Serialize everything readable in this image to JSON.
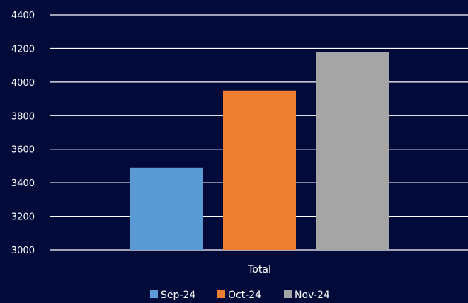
{
  "colors": {
    "background": "#020a3a",
    "grid": "#ffffff",
    "text": "#ffffff"
  },
  "chart_data": {
    "type": "bar",
    "categories": [
      "Total"
    ],
    "series": [
      {
        "name": "Sep-24",
        "values": [
          3490
        ],
        "color": "#5b9bd5"
      },
      {
        "name": "Oct-24",
        "values": [
          3950
        ],
        "color": "#ed7d31"
      },
      {
        "name": "Nov-24",
        "values": [
          4180
        ],
        "color": "#a5a5a5"
      }
    ],
    "ylim": [
      3000,
      4400
    ],
    "yticks": [
      3000,
      3200,
      3400,
      3600,
      3800,
      4000,
      4200,
      4400
    ],
    "grid": true,
    "legend": "bottom",
    "title": "",
    "xlabel": "",
    "ylabel": ""
  }
}
